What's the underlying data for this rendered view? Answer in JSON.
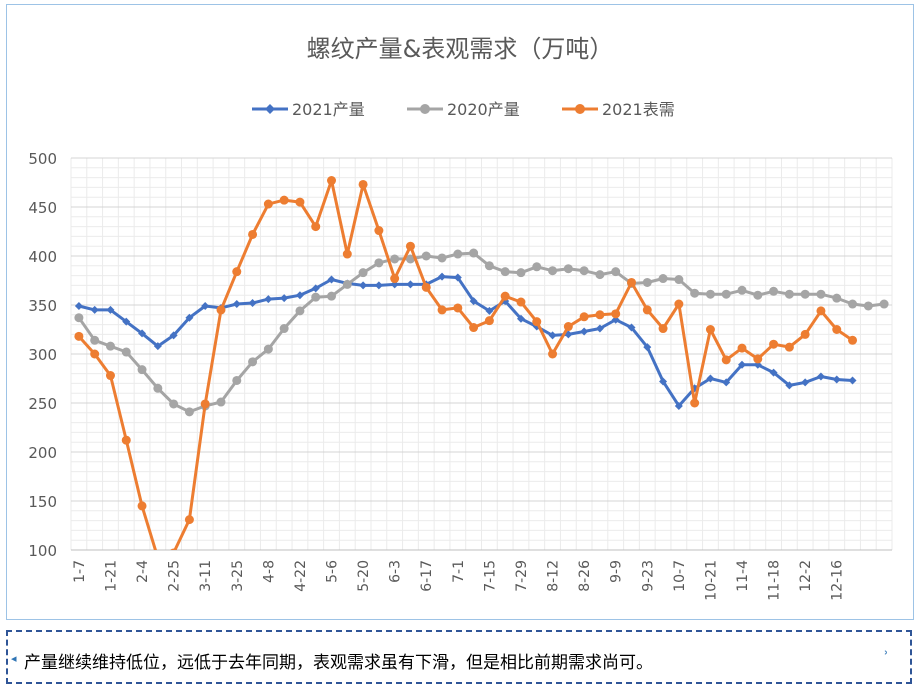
{
  "caption": {
    "text": "产量继续维持低位，远低于去年同期，表观需求虽有下滑，但是相比前期需求尚可。",
    "mark_left": "◂",
    "mark_right": "ʾ"
  },
  "chart_data": {
    "type": "line",
    "title": "螺纹产量&表观需求（万吨）",
    "legend_position": "top",
    "grid": true,
    "ylim": [
      100,
      500
    ],
    "yticks": [
      100,
      150,
      200,
      250,
      300,
      350,
      400,
      450,
      500
    ],
    "xlabel": "",
    "ylabel": "",
    "tick_labels": [
      "1-7",
      "1-21",
      "2-4",
      "2-25",
      "3-11",
      "3-25",
      "4-8",
      "4-22",
      "5-6",
      "5-20",
      "6-3",
      "6-17",
      "7-1",
      "7-15",
      "7-29",
      "8-12",
      "8-26",
      "9-9",
      "9-23",
      "10-7",
      "10-21",
      "11-4",
      "11-18",
      "12-2",
      "12-16"
    ],
    "tick_every": 2,
    "num_points": 52,
    "series": [
      {
        "name": "2021产量",
        "color": "#4472c4",
        "marker": "diamond",
        "values": [
          349,
          345,
          345,
          333,
          321,
          308,
          319,
          337,
          349,
          347,
          351,
          352,
          356,
          357,
          360,
          367,
          376,
          372,
          370,
          370,
          371,
          371,
          371,
          379,
          378,
          354,
          344,
          354,
          336,
          328,
          319,
          320,
          323,
          326,
          335,
          327,
          307,
          272,
          247,
          265,
          275,
          271,
          289,
          289,
          281,
          268,
          271,
          277,
          274,
          273
        ]
      },
      {
        "name": "2020产量",
        "color": "#a5a5a5",
        "marker": "circle",
        "values": [
          337,
          314,
          308,
          302,
          284,
          265,
          249,
          241,
          247,
          251,
          273,
          292,
          305,
          326,
          344,
          358,
          359,
          371,
          383,
          393,
          397,
          397,
          400,
          398,
          402,
          403,
          390,
          384,
          383,
          389,
          385,
          387,
          385,
          381,
          384,
          372,
          373,
          377,
          376,
          362,
          361,
          361,
          365,
          360,
          364,
          361,
          361,
          361,
          357,
          351,
          349,
          351
        ]
      },
      {
        "name": "2021表需",
        "color": "#ed7d31",
        "marker": "circle",
        "values": [
          318,
          300,
          278,
          212,
          145,
          92,
          97,
          131,
          249,
          345,
          384,
          422,
          453,
          457,
          455,
          430,
          477,
          402,
          473,
          426,
          377,
          410,
          368,
          345,
          347,
          327,
          334,
          359,
          353,
          333,
          300,
          328,
          338,
          340,
          341,
          373,
          345,
          326,
          351,
          250,
          325,
          294,
          306,
          295,
          310,
          307,
          320,
          344,
          325,
          314
        ]
      }
    ]
  }
}
